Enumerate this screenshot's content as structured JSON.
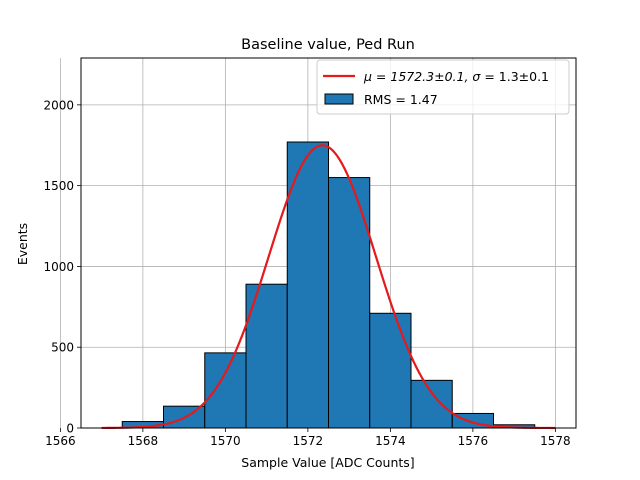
{
  "chart_data": {
    "type": "bar",
    "title": "Baseline value, Ped Run",
    "xlabel": "Sample Value [ADC Counts]",
    "ylabel": "Events",
    "xlim": [
      1566.5,
      1578.5
    ],
    "ylim": [
      0,
      2290
    ],
    "xticks": [
      1566,
      1568,
      1570,
      1572,
      1574,
      1576,
      1578
    ],
    "yticks": [
      0,
      500,
      1000,
      1500,
      2000
    ],
    "grid": true,
    "legend_position": "top-right",
    "histogram": {
      "name": "RMS = 1.47",
      "color": "#1f77b4",
      "bin_edges": [
        1567.5,
        1568.5,
        1569.5,
        1570.5,
        1571.5,
        1572.5,
        1573.5,
        1574.5,
        1575.5,
        1576.5,
        1577.5
      ],
      "counts": [
        40,
        135,
        465,
        890,
        1770,
        1550,
        710,
        295,
        90,
        20
      ]
    },
    "fit": {
      "name_prefix": "μ = 1572.3±0.1, ",
      "name_sigma": "σ",
      "name_suffix": " = 1.3±0.1",
      "color": "#e41a1c",
      "mu": 1572.35,
      "sigma": 1.3,
      "amplitude": 1750,
      "x_range": [
        1567,
        1578
      ]
    }
  }
}
